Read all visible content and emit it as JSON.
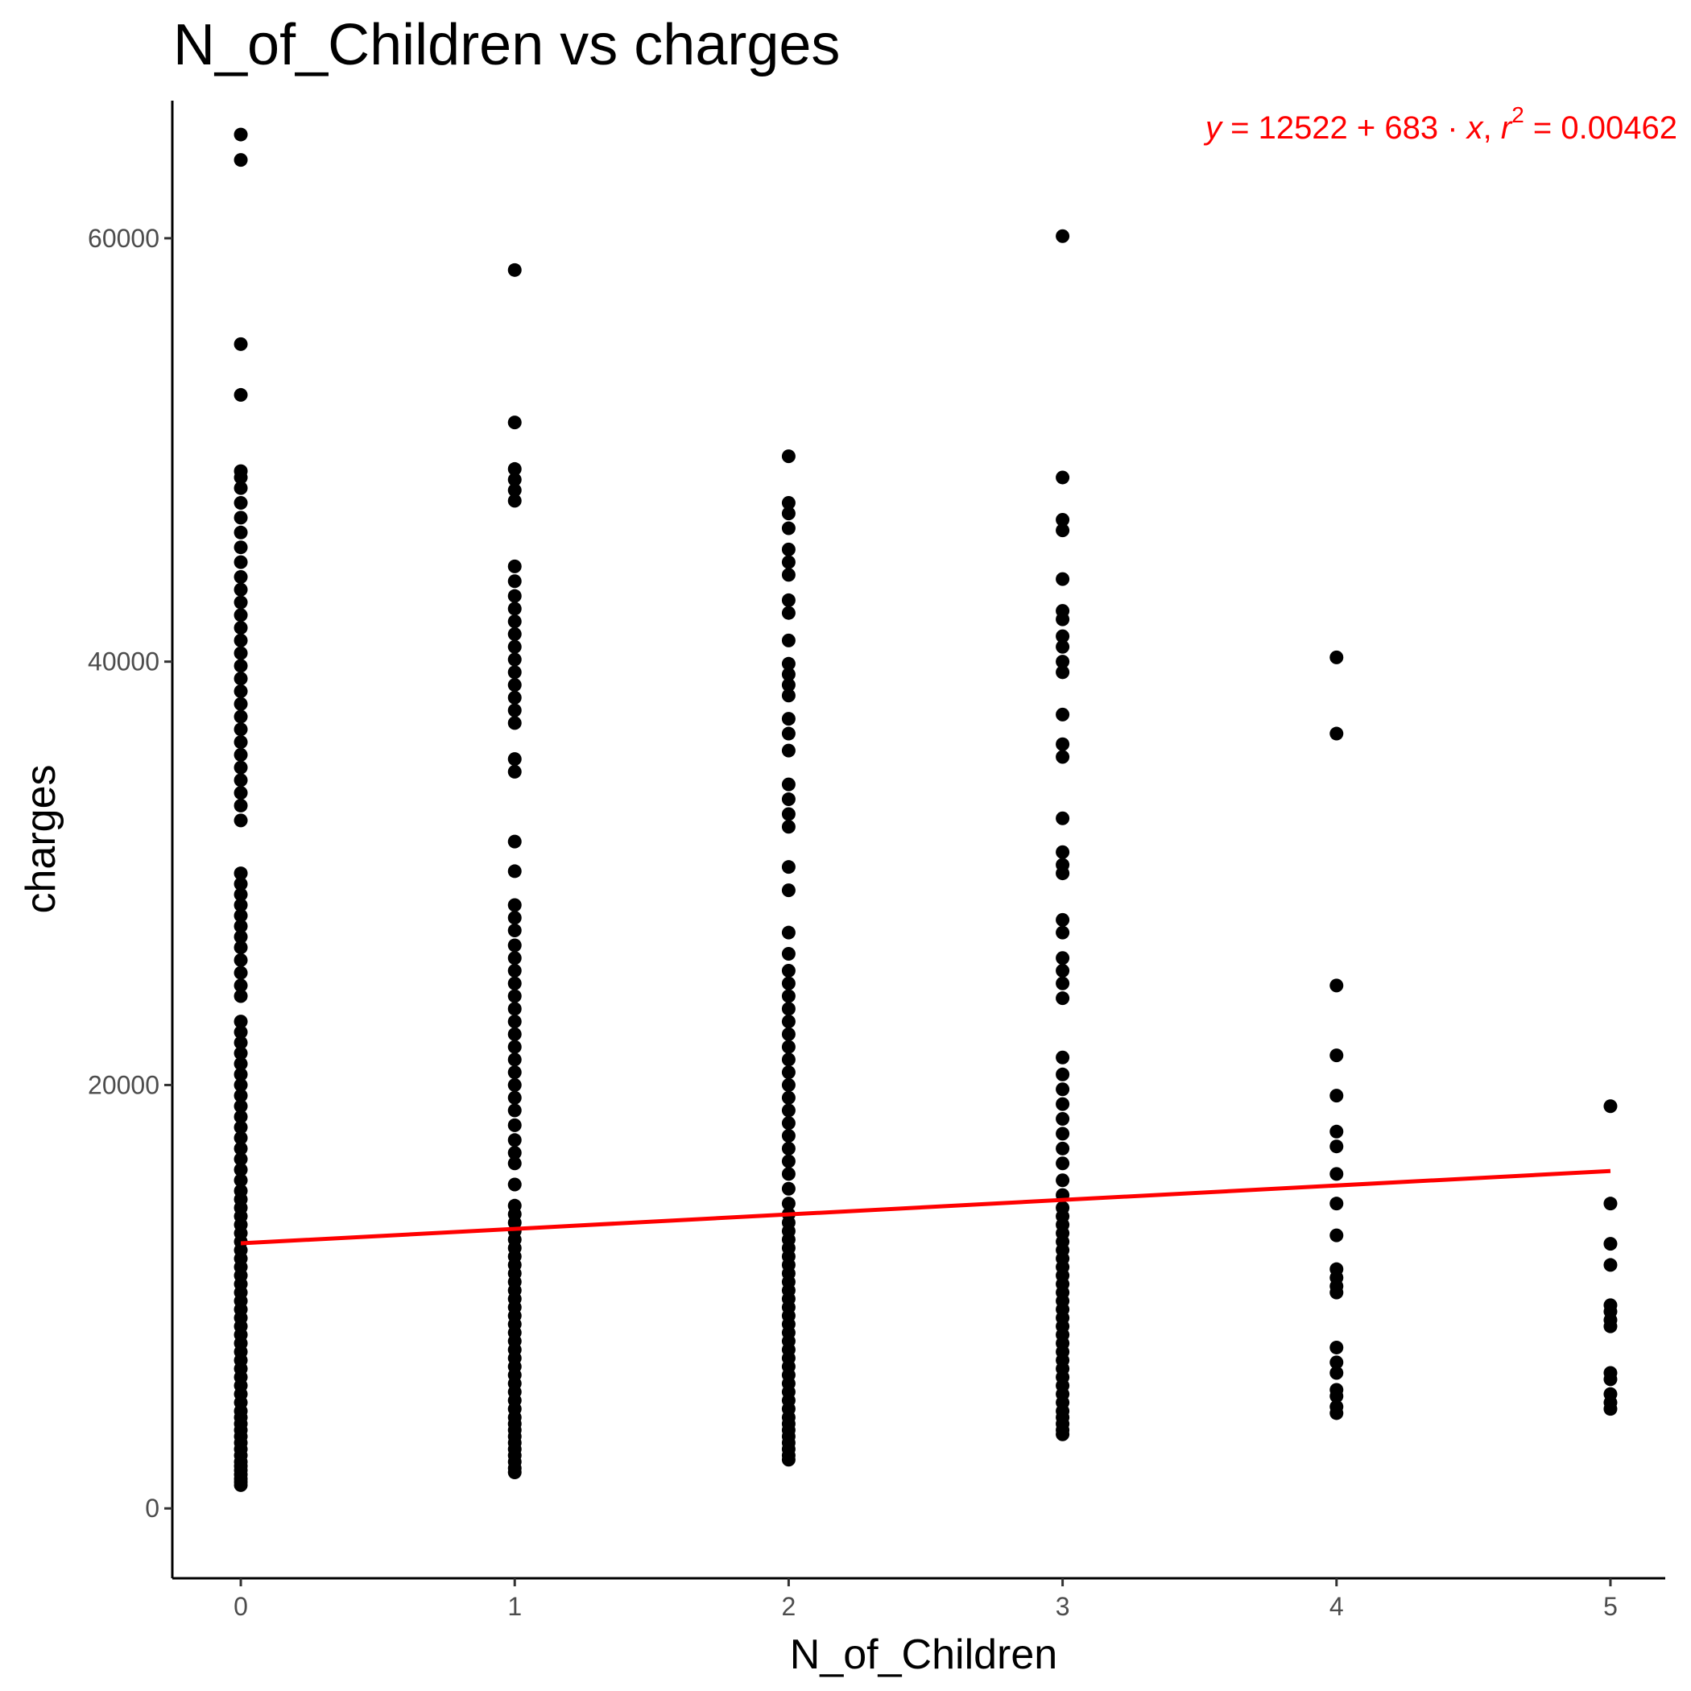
{
  "chart_data": {
    "type": "scatter",
    "title": "N_of_Children vs charges",
    "xlabel": "N_of_Children",
    "ylabel": "charges",
    "xlim": [
      -0.25,
      5.2
    ],
    "ylim": [
      -3300,
      66500
    ],
    "x_ticks": [
      0,
      1,
      2,
      3,
      4,
      5
    ],
    "y_ticks": [
      0,
      20000,
      40000,
      60000
    ],
    "x_tick_labels": [
      "0",
      "1",
      "2",
      "3",
      "4",
      "5"
    ],
    "y_tick_labels": [
      "0",
      "20000",
      "40000",
      "60000"
    ],
    "grid": false,
    "point_color": "#000000",
    "fit_color": "#ff0000",
    "fit_line": {
      "intercept": 12522,
      "slope": 683,
      "x_range": [
        0,
        5
      ]
    },
    "annotation": {
      "y": "y",
      "eq_part": " = 12522 + 683 · ",
      "x": "x",
      "sep": ",  ",
      "r": "r",
      "sup": "2",
      "r2_part": " = 0.00462"
    },
    "series": [
      {
        "x": 0,
        "values": [
          1100,
          1250,
          1400,
          1600,
          1800,
          2000,
          2200,
          2500,
          2800,
          3100,
          3400,
          3700,
          4000,
          4300,
          4600,
          5000,
          5400,
          5800,
          6200,
          6600,
          7000,
          7400,
          7800,
          8200,
          8600,
          9000,
          9400,
          9800,
          10200,
          10600,
          11000,
          11400,
          11800,
          12200,
          12600,
          13000,
          13400,
          13800,
          14200,
          14600,
          15000,
          15500,
          16000,
          16500,
          17000,
          17500,
          18000,
          18500,
          19000,
          19500,
          20000,
          20500,
          21000,
          21500,
          22000,
          22500,
          23000,
          24200,
          24700,
          25300,
          25900,
          26500,
          27000,
          27500,
          28000,
          28500,
          29000,
          29500,
          30000,
          32500,
          33200,
          33800,
          34400,
          35000,
          35600,
          36200,
          36800,
          37400,
          38000,
          38600,
          39200,
          39800,
          40400,
          41000,
          41600,
          42200,
          42800,
          43400,
          44000,
          44700,
          45400,
          46100,
          46800,
          47500,
          48200,
          48700,
          49000,
          52600,
          55000,
          63700,
          64900
        ]
      },
      {
        "x": 1,
        "values": [
          1700,
          1900,
          2200,
          2500,
          2800,
          3100,
          3400,
          3700,
          4000,
          4300,
          4700,
          5100,
          5500,
          5900,
          6300,
          6700,
          7100,
          7500,
          7900,
          8300,
          8700,
          9100,
          9500,
          9900,
          10300,
          10700,
          11100,
          11500,
          11900,
          12300,
          12700,
          13100,
          13500,
          13900,
          14300,
          15300,
          16300,
          16800,
          17400,
          18100,
          18800,
          19400,
          20000,
          20600,
          21200,
          21800,
          22400,
          23000,
          23600,
          24200,
          24800,
          25400,
          26000,
          26600,
          27300,
          27900,
          28500,
          30100,
          31500,
          34800,
          35400,
          37100,
          37700,
          38300,
          38900,
          39500,
          40100,
          40700,
          41300,
          41900,
          42500,
          43100,
          43800,
          44500,
          47600,
          48100,
          48600,
          49100,
          51300,
          58500
        ]
      },
      {
        "x": 2,
        "values": [
          2300,
          2500,
          2800,
          3100,
          3400,
          3700,
          4000,
          4300,
          4700,
          5100,
          5500,
          5900,
          6300,
          6700,
          7100,
          7500,
          7900,
          8300,
          8700,
          9100,
          9500,
          9900,
          10300,
          10700,
          11100,
          11500,
          11900,
          12300,
          12700,
          13100,
          13500,
          13900,
          14400,
          15100,
          15800,
          16400,
          17000,
          17600,
          18200,
          18800,
          19400,
          20000,
          20600,
          21200,
          21800,
          22400,
          23000,
          23600,
          24200,
          24800,
          25400,
          26200,
          27200,
          29200,
          30300,
          32200,
          32800,
          33500,
          34200,
          35800,
          36600,
          37300,
          38400,
          38900,
          39400,
          39900,
          41000,
          42300,
          42900,
          44100,
          44700,
          45300,
          46300,
          47000,
          47500,
          49700
        ]
      },
      {
        "x": 3,
        "values": [
          3500,
          3700,
          4000,
          4300,
          4600,
          5000,
          5400,
          5800,
          6200,
          6600,
          7000,
          7400,
          7800,
          8200,
          8600,
          9000,
          9400,
          9800,
          10200,
          10600,
          11000,
          11400,
          11800,
          12200,
          12600,
          13000,
          13400,
          13800,
          14200,
          14800,
          15500,
          16300,
          17000,
          17700,
          18400,
          19100,
          19800,
          20500,
          21300,
          24100,
          24800,
          25400,
          26000,
          27200,
          27800,
          30000,
          30400,
          31000,
          32600,
          35500,
          36100,
          37500,
          39500,
          40000,
          40700,
          41200,
          42000,
          42400,
          43900,
          46200,
          46700,
          48700,
          60100
        ]
      },
      {
        "x": 4,
        "values": [
          4500,
          4800,
          5300,
          5600,
          6400,
          6900,
          7600,
          10200,
          10500,
          10900,
          11300,
          12900,
          14400,
          15800,
          17100,
          17800,
          19500,
          21400,
          24700,
          36600,
          40200
        ]
      },
      {
        "x": 5,
        "values": [
          4700,
          5000,
          5400,
          6100,
          6400,
          8600,
          8900,
          9300,
          9600,
          11500,
          12500,
          14400,
          19000
        ]
      }
    ]
  }
}
